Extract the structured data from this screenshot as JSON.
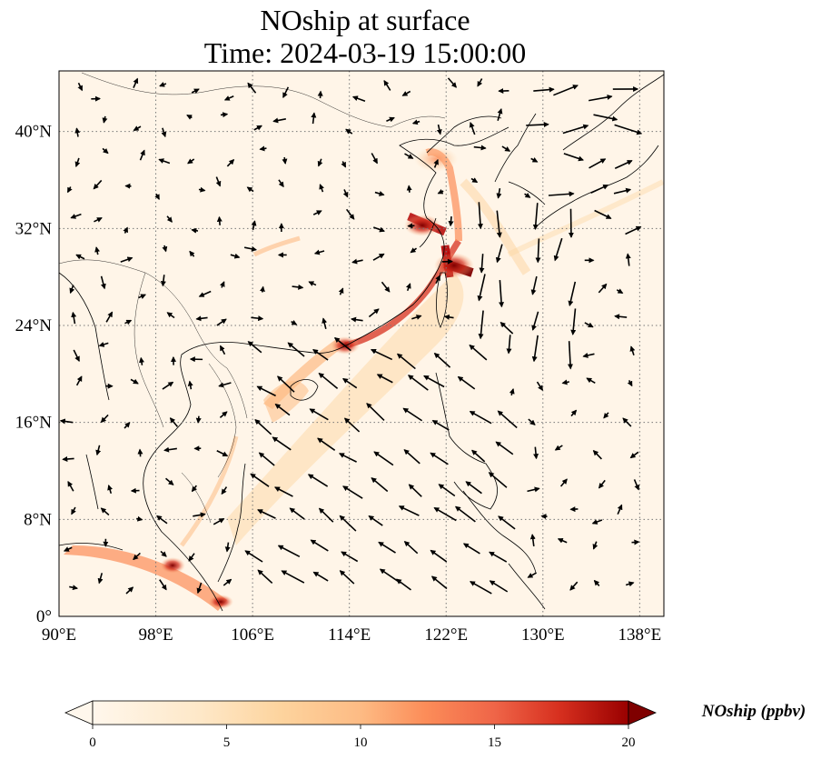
{
  "title": {
    "line1": "NOship at surface",
    "line2": "Time: 2024-03-19 15:00:00"
  },
  "map": {
    "lon_range": [
      90,
      140
    ],
    "lat_range": [
      0,
      45
    ],
    "x_ticks": [
      {
        "lon": 90,
        "label": "90°E"
      },
      {
        "lon": 98,
        "label": "98°E"
      },
      {
        "lon": 106,
        "label": "106°E"
      },
      {
        "lon": 114,
        "label": "114°E"
      },
      {
        "lon": 122,
        "label": "122°E"
      },
      {
        "lon": 130,
        "label": "130°E"
      },
      {
        "lon": 138,
        "label": "138°E"
      }
    ],
    "y_ticks": [
      {
        "lat": 0,
        "label": "0°"
      },
      {
        "lat": 8,
        "label": "8°N"
      },
      {
        "lat": 16,
        "label": "16°N"
      },
      {
        "lat": 24,
        "label": "24°N"
      },
      {
        "lat": 32,
        "label": "32°N"
      },
      {
        "lat": 40,
        "label": "40°N"
      }
    ],
    "grid": "dotted",
    "colormap": "OrRd",
    "colors": {
      "low": "#fff7ec",
      "mid": "#fdbb84",
      "high": "#7f0000",
      "grid": "#777777"
    }
  },
  "colorbar": {
    "title": "NOship (ppbv)",
    "min": 0,
    "max": 20,
    "ticks": [
      {
        "value": 0,
        "label": "0"
      },
      {
        "value": 5,
        "label": "5"
      },
      {
        "value": 10,
        "label": "10"
      },
      {
        "value": 15,
        "label": "15"
      },
      {
        "value": 20,
        "label": "20"
      }
    ],
    "extend": "both"
  }
}
